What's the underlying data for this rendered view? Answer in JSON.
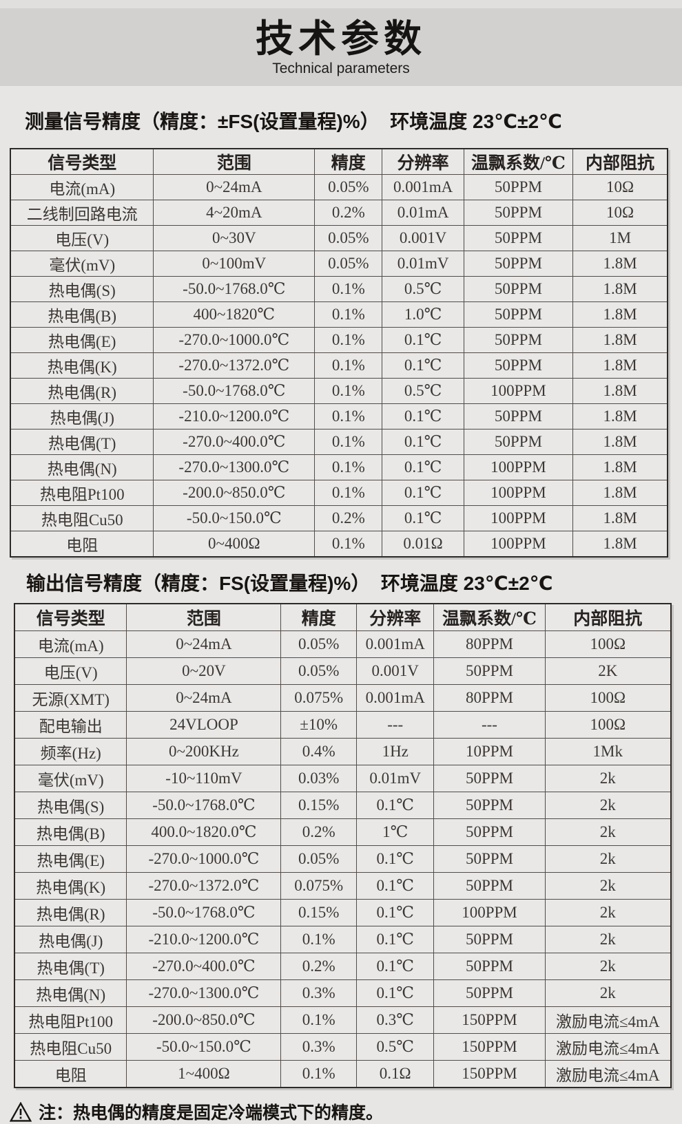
{
  "header": {
    "title": "技术参数",
    "subtitle": "Technical parameters"
  },
  "colors": {
    "band_gray": "#d2d1d0",
    "page_bg": "#e7e6e5",
    "table_border": "#2d2926",
    "text_dark": "#171411"
  },
  "measurement": {
    "heading": "测量信号精度（精度：±FS(设置量程)%）  环境温度 23℃±2℃",
    "columns": [
      "信号类型",
      "范围",
      "精度",
      "分辨率",
      "温飘系数/℃",
      "内部阻抗"
    ],
    "rows": [
      [
        "电流(mA)",
        "0~24mA",
        "0.05%",
        "0.001mA",
        "50PPM",
        "10Ω"
      ],
      [
        "二线制回路电流",
        "4~20mA",
        "0.2%",
        "0.01mA",
        "50PPM",
        "10Ω"
      ],
      [
        "电压(V)",
        "0~30V",
        "0.05%",
        "0.001V",
        "50PPM",
        "1M"
      ],
      [
        "毫伏(mV)",
        "0~100mV",
        "0.05%",
        "0.01mV",
        "50PPM",
        "1.8M"
      ],
      [
        "热电偶(S)",
        "-50.0~1768.0℃",
        "0.1%",
        "0.5℃",
        "50PPM",
        "1.8M"
      ],
      [
        "热电偶(B)",
        "400~1820℃",
        "0.1%",
        "1.0℃",
        "50PPM",
        "1.8M"
      ],
      [
        "热电偶(E)",
        "-270.0~1000.0℃",
        "0.1%",
        "0.1℃",
        "50PPM",
        "1.8M"
      ],
      [
        "热电偶(K)",
        "-270.0~1372.0℃",
        "0.1%",
        "0.1℃",
        "50PPM",
        "1.8M"
      ],
      [
        "热电偶(R)",
        "-50.0~1768.0℃",
        "0.1%",
        "0.5℃",
        "100PPM",
        "1.8M"
      ],
      [
        "热电偶(J)",
        "-210.0~1200.0℃",
        "0.1%",
        "0.1℃",
        "50PPM",
        "1.8M"
      ],
      [
        "热电偶(T)",
        "-270.0~400.0℃",
        "0.1%",
        "0.1℃",
        "50PPM",
        "1.8M"
      ],
      [
        "热电偶(N)",
        "-270.0~1300.0℃",
        "0.1%",
        "0.1℃",
        "100PPM",
        "1.8M"
      ],
      [
        "热电阻Pt100",
        "-200.0~850.0℃",
        "0.1%",
        "0.1℃",
        "100PPM",
        "1.8M"
      ],
      [
        "热电阻Cu50",
        "-50.0~150.0℃",
        "0.2%",
        "0.1℃",
        "100PPM",
        "1.8M"
      ],
      [
        "电阻",
        "0~400Ω",
        "0.1%",
        "0.01Ω",
        "100PPM",
        "1.8M"
      ]
    ]
  },
  "output": {
    "heading": "输出信号精度（精度：FS(设置量程)%）  环境温度 23℃±2℃",
    "columns": [
      "信号类型",
      "范围",
      "精度",
      "分辨率",
      "温飘系数/℃",
      "内部阻抗"
    ],
    "rows": [
      [
        "电流(mA)",
        "0~24mA",
        "0.05%",
        "0.001mA",
        "80PPM",
        "100Ω"
      ],
      [
        "电压(V)",
        "0~20V",
        "0.05%",
        "0.001V",
        "50PPM",
        "2K"
      ],
      [
        "无源(XMT)",
        "0~24mA",
        "0.075%",
        "0.001mA",
        "80PPM",
        "100Ω"
      ],
      [
        "配电输出",
        "24VLOOP",
        "±10%",
        "---",
        "---",
        "100Ω"
      ],
      [
        "频率(Hz)",
        "0~200KHz",
        "0.4%",
        "1Hz",
        "10PPM",
        "1Mk"
      ],
      [
        "毫伏(mV)",
        "-10~110mV",
        "0.03%",
        "0.01mV",
        "50PPM",
        "2k"
      ],
      [
        "热电偶(S)",
        "-50.0~1768.0℃",
        "0.15%",
        "0.1℃",
        "50PPM",
        "2k"
      ],
      [
        "热电偶(B)",
        "400.0~1820.0℃",
        "0.2%",
        "1℃",
        "50PPM",
        "2k"
      ],
      [
        "热电偶(E)",
        "-270.0~1000.0℃",
        "0.05%",
        "0.1℃",
        "50PPM",
        "2k"
      ],
      [
        "热电偶(K)",
        "-270.0~1372.0℃",
        "0.075%",
        "0.1℃",
        "50PPM",
        "2k"
      ],
      [
        "热电偶(R)",
        "-50.0~1768.0℃",
        "0.15%",
        "0.1℃",
        "100PPM",
        "2k"
      ],
      [
        "热电偶(J)",
        "-210.0~1200.0℃",
        "0.1%",
        "0.1℃",
        "50PPM",
        "2k"
      ],
      [
        "热电偶(T)",
        "-270.0~400.0℃",
        "0.2%",
        "0.1℃",
        "50PPM",
        "2k"
      ],
      [
        "热电偶(N)",
        "-270.0~1300.0℃",
        "0.3%",
        "0.1℃",
        "50PPM",
        "2k"
      ],
      [
        "热电阻Pt100",
        "-200.0~850.0℃",
        "0.1%",
        "0.3℃",
        "150PPM",
        "激励电流≤4mA"
      ],
      [
        "热电阻Cu50",
        "-50.0~150.0℃",
        "0.3%",
        "0.5℃",
        "150PPM",
        "激励电流≤4mA"
      ],
      [
        "电阻",
        "1~400Ω",
        "0.1%",
        "0.1Ω",
        "150PPM",
        "激励电流≤4mA"
      ]
    ]
  },
  "footnote": {
    "warning_icon": "warning-triangle-icon",
    "text": "注：热电偶的精度是固定冷端模式下的精度。"
  }
}
